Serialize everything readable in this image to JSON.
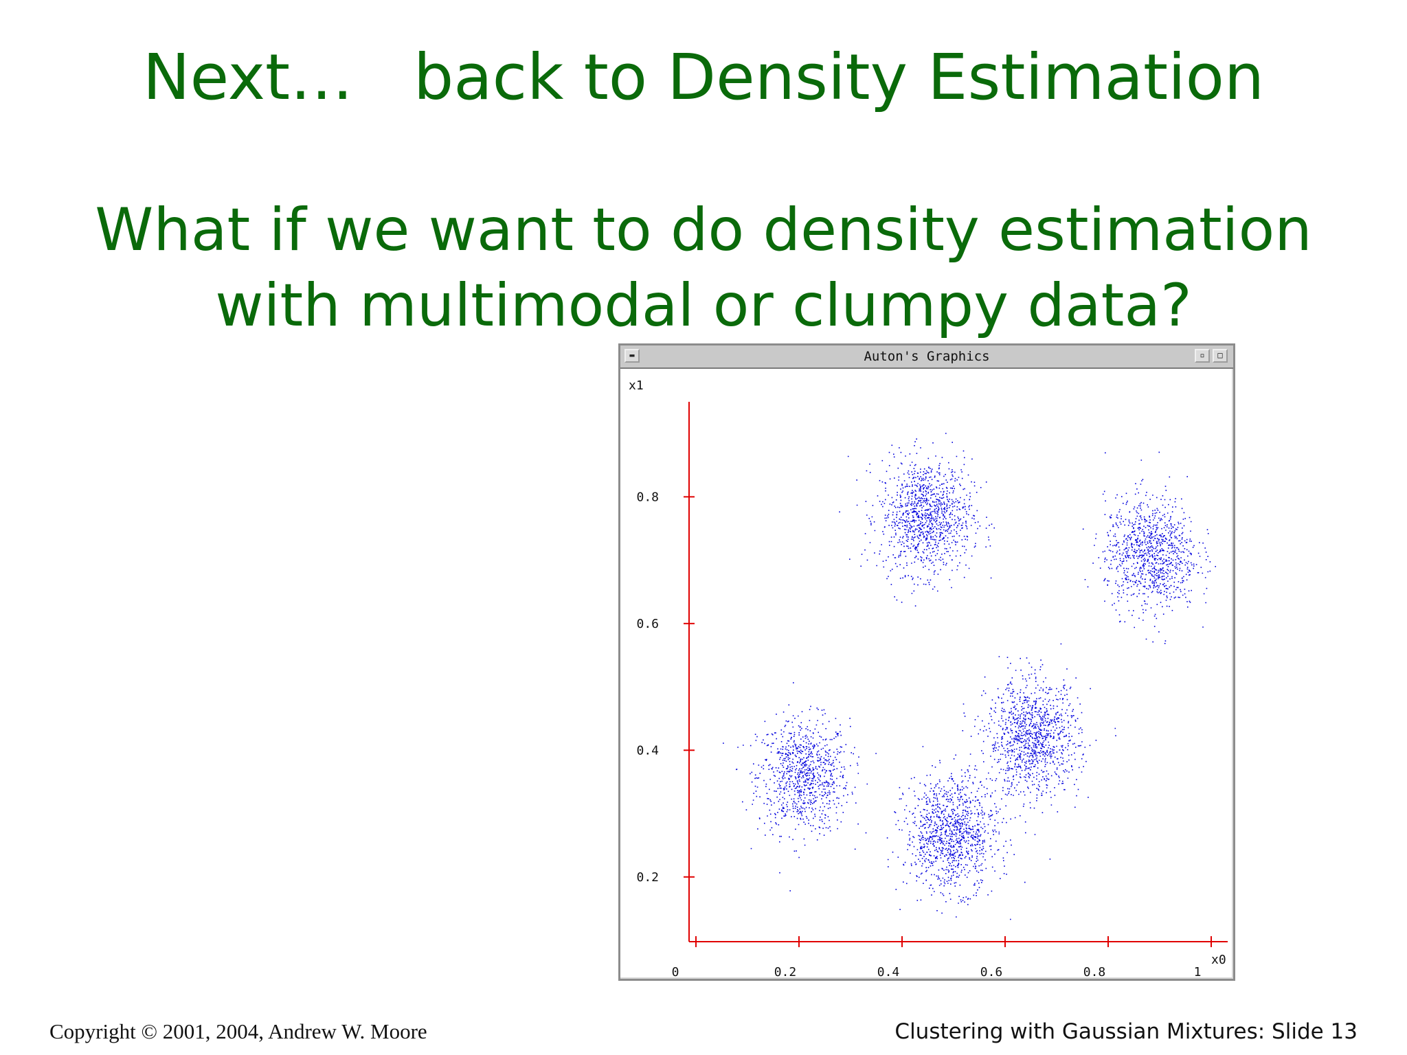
{
  "slide": {
    "title": "Next…   back to Density Estimation",
    "question_lines": [
      "What if we want to do density estimation",
      "with multimodal or clumpy data?"
    ]
  },
  "window": {
    "title": "Auton's Graphics",
    "menu_icon": "window-menu-icon",
    "min_icon": "window-minimize-icon",
    "max_icon": "window-maximize-icon"
  },
  "chart_data": {
    "type": "scatter",
    "xlabel": "x0",
    "ylabel": "x1",
    "x_ticks": [
      "0",
      "0.2",
      "0.4",
      "0.6",
      "0.8",
      "1"
    ],
    "x_tick_values": [
      0,
      0.2,
      0.4,
      0.6,
      0.8,
      1.0
    ],
    "y_ticks": [
      "0.2",
      "0.4",
      "0.6",
      "0.8"
    ],
    "y_tick_values": [
      0.2,
      0.4,
      0.6,
      0.8
    ],
    "xlim": [
      0,
      1.03
    ],
    "ylim": [
      0.1,
      0.95
    ],
    "grid": false,
    "axis_color": "#e00000",
    "point_color": "#0000dd",
    "clusters": [
      {
        "center": [
          0.22,
          0.36
        ],
        "spread": 0.045,
        "points": 900
      },
      {
        "center": [
          0.46,
          0.77
        ],
        "spread": 0.045,
        "points": 1100
      },
      {
        "center": [
          0.9,
          0.71
        ],
        "spread": 0.045,
        "points": 1000
      },
      {
        "center": [
          0.51,
          0.27
        ],
        "spread": 0.045,
        "points": 1100
      },
      {
        "center": [
          0.67,
          0.42
        ],
        "spread": 0.045,
        "points": 1100
      }
    ]
  },
  "footer": {
    "copyright": "Copyright © 2001, 2004, Andrew W. Moore",
    "slide_label": "Clustering with Gaussian Mixtures: Slide 13"
  }
}
